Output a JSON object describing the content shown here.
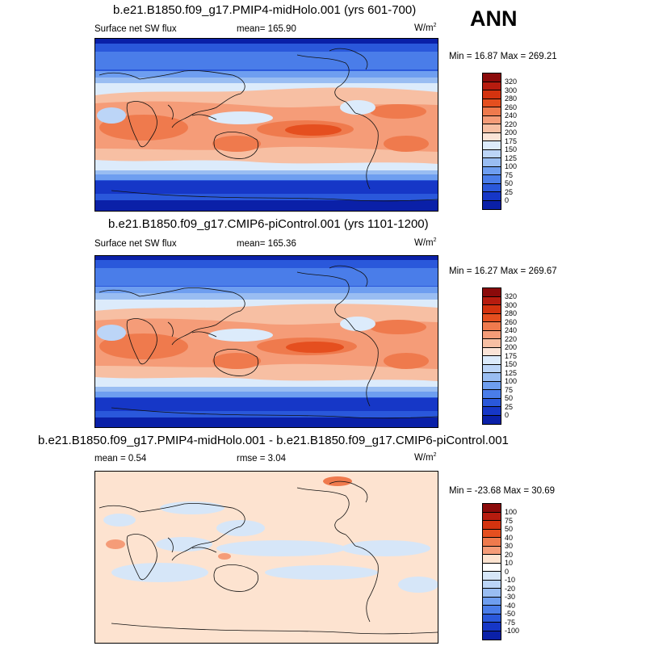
{
  "season": "ANN",
  "panels": [
    {
      "title": "b.e21.B1850.f09_g17.PMIP4-midHolo.001 (yrs 601-700)",
      "left_label": "Surface net SW flux",
      "mid_label": "mean= 165.90",
      "units": "W/m",
      "units_sup": "2",
      "minmax": "Min =  16.87 Max = 269.21",
      "colorbar_labels": [
        "320",
        "300",
        "280",
        "260",
        "240",
        "220",
        "200",
        "175",
        "150",
        "125",
        "100",
        "75",
        "50",
        "25",
        "0"
      ],
      "colorbar_colors": [
        "#8b0a0a",
        "#b71c0f",
        "#d4330f",
        "#e54f1f",
        "#ef7a4d",
        "#f59c78",
        "#f7bfa3",
        "#fbe4d7",
        "#dcebfb",
        "#bcd5f7",
        "#99bdf2",
        "#6e9ef0",
        "#4a7de9",
        "#2a58db",
        "#1637c7",
        "#0a20a8"
      ]
    },
    {
      "title": "b.e21.B1850.f09_g17.CMIP6-piControl.001 (yrs 1101-1200)",
      "left_label": "Surface net SW flux",
      "mid_label": "mean= 165.36",
      "units": "W/m",
      "units_sup": "2",
      "minmax": "Min =  16.27 Max = 269.67",
      "colorbar_labels": [
        "320",
        "300",
        "280",
        "260",
        "240",
        "220",
        "200",
        "175",
        "150",
        "125",
        "100",
        "75",
        "50",
        "25",
        "0"
      ],
      "colorbar_colors": [
        "#8b0a0a",
        "#b71c0f",
        "#d4330f",
        "#e54f1f",
        "#ef7a4d",
        "#f59c78",
        "#f7bfa3",
        "#fbe4d7",
        "#dcebfb",
        "#bcd5f7",
        "#99bdf2",
        "#6e9ef0",
        "#4a7de9",
        "#2a58db",
        "#1637c7",
        "#0a20a8"
      ]
    },
    {
      "title": "b.e21.B1850.f09_g17.PMIP4-midHolo.001 - b.e21.B1850.f09_g17.CMIP6-piControl.001",
      "left_label": "mean =   0.54",
      "mid_label": "rmse =   3.04",
      "units": "W/m",
      "units_sup": "2",
      "minmax": "Min = -23.68 Max =  30.69",
      "colorbar_labels": [
        "100",
        "75",
        "50",
        "40",
        "30",
        "20",
        "10",
        "0",
        "-10",
        "-20",
        "-30",
        "-40",
        "-50",
        "-75",
        "-100"
      ],
      "colorbar_colors": [
        "#8b0a0a",
        "#b71c0f",
        "#d4330f",
        "#e54f1f",
        "#ef7a4d",
        "#f59c78",
        "#fde3d0",
        "#ffffff",
        "#d6e6f8",
        "#bcd5f7",
        "#99bdf2",
        "#6e9ef0",
        "#4a7de9",
        "#2a58db",
        "#1637c7",
        "#0a20a8"
      ]
    }
  ]
}
